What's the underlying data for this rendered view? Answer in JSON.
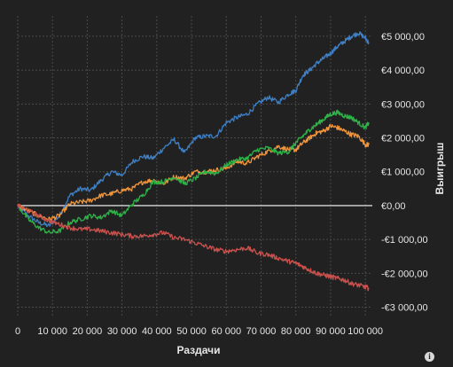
{
  "chart_data": {
    "type": "line",
    "xlabel": "Раздачи",
    "ylabel": "Выигрыш",
    "xlim": [
      0,
      102000
    ],
    "ylim": [
      -3300,
      5500
    ],
    "x_ticks": [
      0,
      10000,
      20000,
      30000,
      40000,
      50000,
      60000,
      70000,
      80000,
      90000,
      100000
    ],
    "x_tick_labels": [
      "0",
      "10 000",
      "20 000",
      "30 000",
      "40 000",
      "50 000",
      "60 000",
      "70 000",
      "80 000",
      "90 000",
      "100 000"
    ],
    "y_ticks": [
      5000,
      4000,
      3000,
      2000,
      1000,
      0,
      -1000,
      -2000,
      -3000
    ],
    "y_tick_labels": [
      "€5 000,00",
      "€4 000,00",
      "€3 000,00",
      "€2 000,00",
      "€1 000,00",
      "€0,00",
      "-€1 000,00",
      "-€2 000,00",
      "-€3 000,00"
    ],
    "grid": true,
    "series": [
      {
        "color": "#3f7fc4",
        "x": [
          0,
          3000,
          6000,
          9000,
          12000,
          15000,
          18000,
          21000,
          24000,
          27000,
          30000,
          33000,
          36000,
          39000,
          42000,
          45000,
          48000,
          51000,
          54000,
          57000,
          60000,
          63000,
          66000,
          69000,
          72000,
          75000,
          78000,
          80000,
          82000,
          84000,
          86000,
          88000,
          90000,
          92000,
          94000,
          96000,
          98000,
          100000,
          101000
        ],
        "y": [
          0,
          -300,
          -500,
          -600,
          -300,
          300,
          500,
          450,
          750,
          1000,
          900,
          1300,
          1450,
          1400,
          1700,
          1950,
          1550,
          2000,
          2050,
          2050,
          2450,
          2600,
          2700,
          3000,
          3200,
          3050,
          3300,
          3400,
          3850,
          4000,
          4200,
          4350,
          4500,
          4700,
          4850,
          5000,
          5100,
          4950,
          4800
        ]
      },
      {
        "color": "#f0953c",
        "x": [
          0,
          3000,
          6000,
          9000,
          12000,
          15000,
          18000,
          21000,
          24000,
          27000,
          30000,
          33000,
          36000,
          39000,
          42000,
          45000,
          48000,
          51000,
          54000,
          57000,
          60000,
          63000,
          66000,
          69000,
          72000,
          75000,
          78000,
          80000,
          82000,
          84000,
          86000,
          88000,
          90000,
          92000,
          94000,
          96000,
          98000,
          100000,
          101000
        ],
        "y": [
          0,
          -150,
          -300,
          -400,
          -300,
          50,
          100,
          150,
          300,
          350,
          450,
          500,
          700,
          750,
          650,
          850,
          800,
          1000,
          1000,
          1050,
          1100,
          1300,
          1250,
          1450,
          1600,
          1750,
          1650,
          1650,
          1850,
          2000,
          2150,
          2200,
          2350,
          2300,
          2200,
          2100,
          2050,
          1800,
          1800
        ]
      },
      {
        "color": "#2fb248",
        "x": [
          0,
          3000,
          6000,
          9000,
          12000,
          15000,
          18000,
          21000,
          24000,
          27000,
          30000,
          33000,
          36000,
          39000,
          42000,
          45000,
          48000,
          51000,
          54000,
          57000,
          60000,
          63000,
          66000,
          69000,
          72000,
          75000,
          78000,
          80000,
          82000,
          84000,
          86000,
          88000,
          90000,
          92000,
          94000,
          96000,
          98000,
          100000,
          101000
        ],
        "y": [
          0,
          -400,
          -650,
          -800,
          -750,
          -500,
          -400,
          -300,
          -350,
          -150,
          -300,
          50,
          300,
          700,
          700,
          850,
          650,
          800,
          1000,
          950,
          1200,
          1350,
          1400,
          1650,
          1700,
          1550,
          1600,
          1850,
          2050,
          2250,
          2400,
          2550,
          2700,
          2750,
          2650,
          2600,
          2450,
          2300,
          2450
        ]
      },
      {
        "color": "#c9514d",
        "x": [
          0,
          3000,
          6000,
          9000,
          12000,
          15000,
          18000,
          21000,
          24000,
          27000,
          30000,
          33000,
          36000,
          39000,
          42000,
          45000,
          48000,
          51000,
          54000,
          57000,
          60000,
          63000,
          66000,
          69000,
          72000,
          75000,
          78000,
          80000,
          82000,
          84000,
          86000,
          88000,
          90000,
          92000,
          94000,
          96000,
          98000,
          100000,
          101000
        ],
        "y": [
          0,
          -150,
          -300,
          -450,
          -550,
          -650,
          -700,
          -700,
          -750,
          -800,
          -850,
          -900,
          -900,
          -850,
          -800,
          -950,
          -1000,
          -1100,
          -1200,
          -1300,
          -1350,
          -1300,
          -1250,
          -1400,
          -1450,
          -1550,
          -1650,
          -1700,
          -1800,
          -1900,
          -2000,
          -2050,
          -2100,
          -2150,
          -2200,
          -2300,
          -2350,
          -2400,
          -2450
        ]
      }
    ]
  },
  "icons": {
    "info": "i"
  },
  "colors": {
    "background": "#212121",
    "grid": "#4a4a4a",
    "zero_line": "#ffffff",
    "text": "#e6e6e6"
  }
}
